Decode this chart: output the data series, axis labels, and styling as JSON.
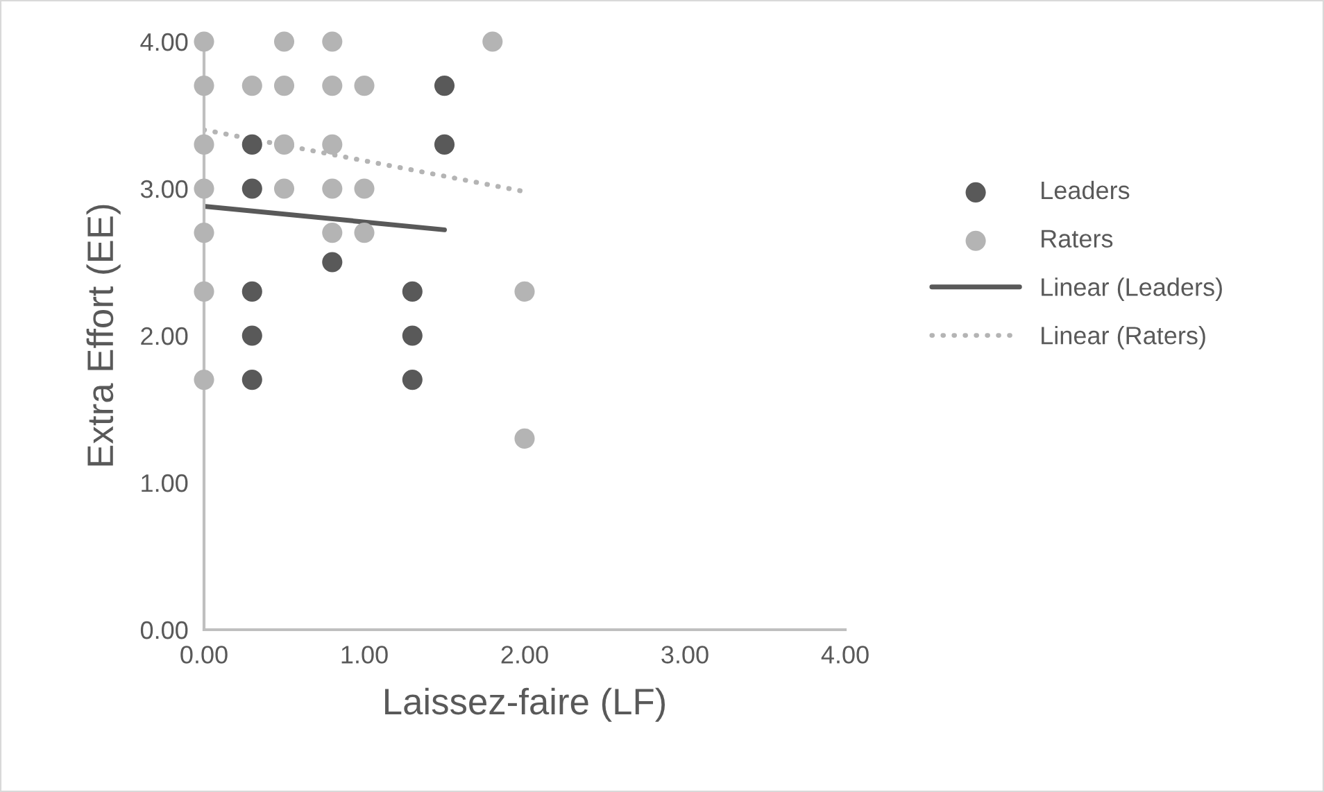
{
  "chart_data": {
    "type": "scatter",
    "xlabel": "Laissez-faire (LF)",
    "ylabel": "Extra Effort (EE)",
    "xlim": [
      0,
      4
    ],
    "ylim": [
      0,
      4
    ],
    "xticks": [
      {
        "value": 0,
        "label": "0.00"
      },
      {
        "value": 1,
        "label": "1.00"
      },
      {
        "value": 2,
        "label": "2.00"
      },
      {
        "value": 3,
        "label": "3.00"
      },
      {
        "value": 4,
        "label": "4.00"
      }
    ],
    "yticks": [
      {
        "value": 0,
        "label": "0.00"
      },
      {
        "value": 1,
        "label": "1.00"
      },
      {
        "value": 2,
        "label": "2.00"
      },
      {
        "value": 3,
        "label": "3.00"
      },
      {
        "value": 4,
        "label": "4.00"
      }
    ],
    "grid": false,
    "legend": "right",
    "series": [
      {
        "name": "Leaders",
        "marker": "circle",
        "color": "#595959",
        "x": [
          0.3,
          0.3,
          0.3,
          0.3,
          0.3,
          0.8,
          1.3,
          1.3,
          1.3,
          1.5,
          1.5
        ],
        "values": [
          3.3,
          3.0,
          2.3,
          2.0,
          1.7,
          2.5,
          2.3,
          2.0,
          1.7,
          3.7,
          3.3
        ]
      },
      {
        "name": "Raters",
        "marker": "circle",
        "color": "#b4b4b4",
        "x": [
          0,
          0,
          0,
          0,
          0,
          0,
          0,
          0.3,
          0.5,
          0.5,
          0.5,
          0.5,
          0.8,
          0.8,
          0.8,
          0.8,
          0.8,
          1.0,
          1.0,
          1.0,
          1.8,
          2.0,
          2.0
        ],
        "values": [
          4.0,
          3.7,
          3.3,
          3.0,
          2.7,
          2.3,
          1.7,
          3.7,
          4.0,
          3.7,
          3.3,
          3.0,
          4.0,
          3.7,
          3.3,
          3.0,
          2.7,
          3.7,
          3.0,
          2.7,
          4.0,
          2.3,
          1.3
        ]
      },
      {
        "name": "Linear (Leaders)",
        "type": "line",
        "line_style": "solid",
        "color": "#595959",
        "x": [
          0,
          1.5
        ],
        "values": [
          2.88,
          2.72
        ]
      },
      {
        "name": "Linear (Raters)",
        "type": "line",
        "line_style": "dotted",
        "color": "#b4b4b4",
        "x": [
          0,
          2.0
        ],
        "values": [
          3.4,
          2.98
        ]
      }
    ]
  }
}
